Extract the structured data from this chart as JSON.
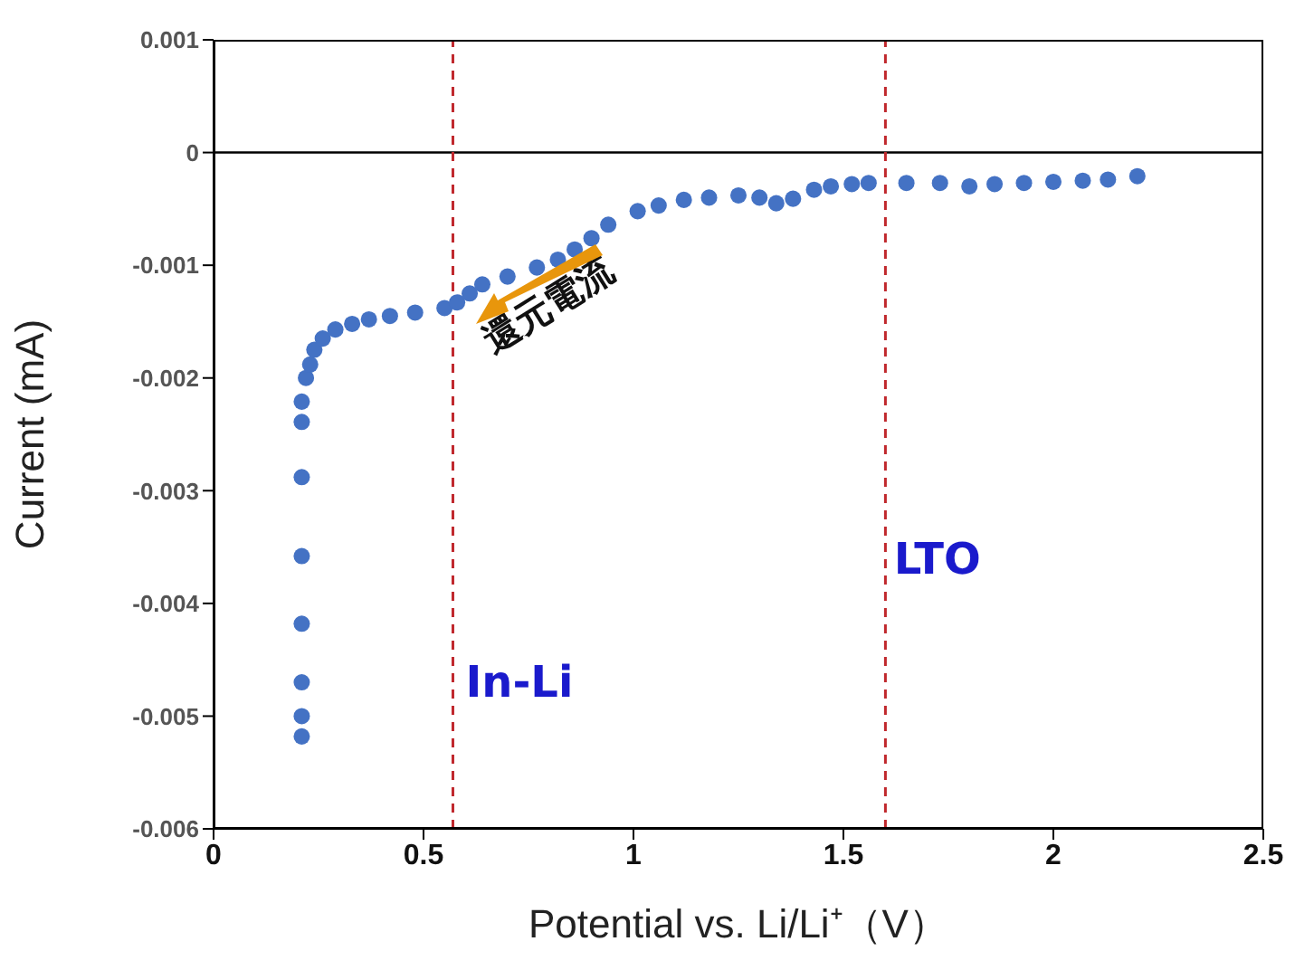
{
  "chart_data": {
    "type": "scatter",
    "xlabel": "Potential vs. Li/Li⁺（V）",
    "ylabel": "Current (mA)",
    "series": [
      {
        "color": "#4472c4",
        "x": [
          0.21,
          0.21,
          0.21,
          0.21,
          0.21,
          0.21,
          0.21,
          0.21,
          0.22,
          0.23,
          0.24,
          0.26,
          0.29,
          0.33,
          0.37,
          0.42,
          0.48,
          0.55,
          0.58,
          0.61,
          0.64,
          0.7,
          0.77,
          0.82,
          0.86,
          0.9,
          0.94,
          1.01,
          1.06,
          1.12,
          1.18,
          1.25,
          1.3,
          1.34,
          1.38,
          1.43,
          1.47,
          1.52,
          1.56,
          1.65,
          1.73,
          1.8,
          1.86,
          1.93,
          2.0,
          2.07,
          2.13,
          2.2
        ],
        "values": [
          -0.00518,
          -0.005,
          -0.0047,
          -0.00418,
          -0.00358,
          -0.00288,
          -0.00239,
          -0.00221,
          -0.002,
          -0.00188,
          -0.00175,
          -0.00165,
          -0.00157,
          -0.00152,
          -0.00148,
          -0.00145,
          -0.00142,
          -0.00138,
          -0.00133,
          -0.00125,
          -0.00117,
          -0.0011,
          -0.00102,
          -0.00095,
          -0.00086,
          -0.00076,
          -0.00064,
          -0.00052,
          -0.00047,
          -0.00042,
          -0.0004,
          -0.00038,
          -0.0004,
          -0.00045,
          -0.00041,
          -0.00033,
          -0.0003,
          -0.00028,
          -0.00027,
          -0.00027,
          -0.00027,
          -0.0003,
          -0.00028,
          -0.00027,
          -0.00026,
          -0.00025,
          -0.00024,
          -0.00021
        ]
      }
    ],
    "marker": "circle",
    "xlim": [
      0,
      2.5
    ],
    "xticks": [
      0,
      0.5,
      1,
      1.5,
      2,
      2.5
    ],
    "ylim": [
      -0.006,
      0.001
    ],
    "yticks": [
      -0.006,
      -0.005,
      -0.004,
      -0.003,
      -0.002,
      -0.001,
      0,
      0.001
    ],
    "ref_lines": [
      {
        "axis": "y",
        "value": 0,
        "color": "#000000",
        "line_style": "solid"
      },
      {
        "axis": "x",
        "value": 0.57,
        "color": "#c0282d",
        "line_style": "dashed"
      },
      {
        "axis": "x",
        "value": 1.6,
        "color": "#c0282d",
        "line_style": "dashed"
      }
    ],
    "annotations": [
      "In-Li",
      "LTO",
      "還元電流"
    ],
    "grid": false,
    "legend": false
  }
}
